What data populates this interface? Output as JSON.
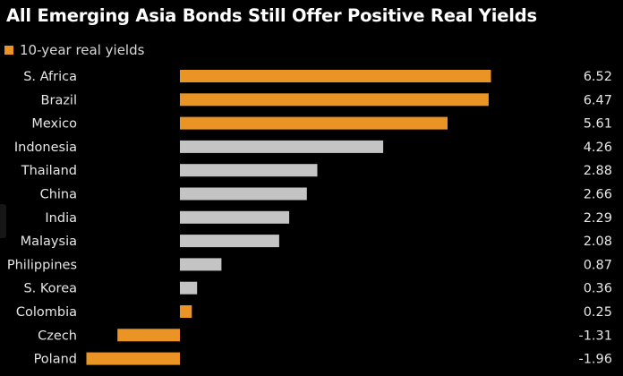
{
  "colors": {
    "highlight": "#E99425",
    "neutral": "#C4C4C4",
    "background": "#000000"
  },
  "chart_data": {
    "type": "bar",
    "orientation": "horizontal",
    "title": "All Emerging Asia Bonds Still Offer Positive Real Yields",
    "legend": {
      "label": "10-year real yields",
      "placement": "top-left"
    },
    "categories": [
      "S. Africa",
      "Brazil",
      "Mexico",
      "Indonesia",
      "Thailand",
      "China",
      "India",
      "Malaysia",
      "Philippines",
      "S. Korea",
      "Colombia",
      "Czech",
      "Poland"
    ],
    "values": [
      6.52,
      6.47,
      5.61,
      4.26,
      2.88,
      2.66,
      2.29,
      2.08,
      0.87,
      0.36,
      0.25,
      -1.31,
      -1.96
    ],
    "value_labels": [
      "6.52",
      "6.47",
      "5.61",
      "4.26",
      "2.88",
      "2.66",
      "2.29",
      "2.08",
      "0.87",
      "0.36",
      "0.25",
      "-1.31",
      "-1.96"
    ],
    "bar_colors": [
      "highlight",
      "highlight",
      "highlight",
      "neutral",
      "neutral",
      "neutral",
      "neutral",
      "neutral",
      "neutral",
      "neutral",
      "highlight",
      "highlight",
      "highlight"
    ],
    "grid": false,
    "xlim": [
      -2,
      6.6
    ]
  }
}
